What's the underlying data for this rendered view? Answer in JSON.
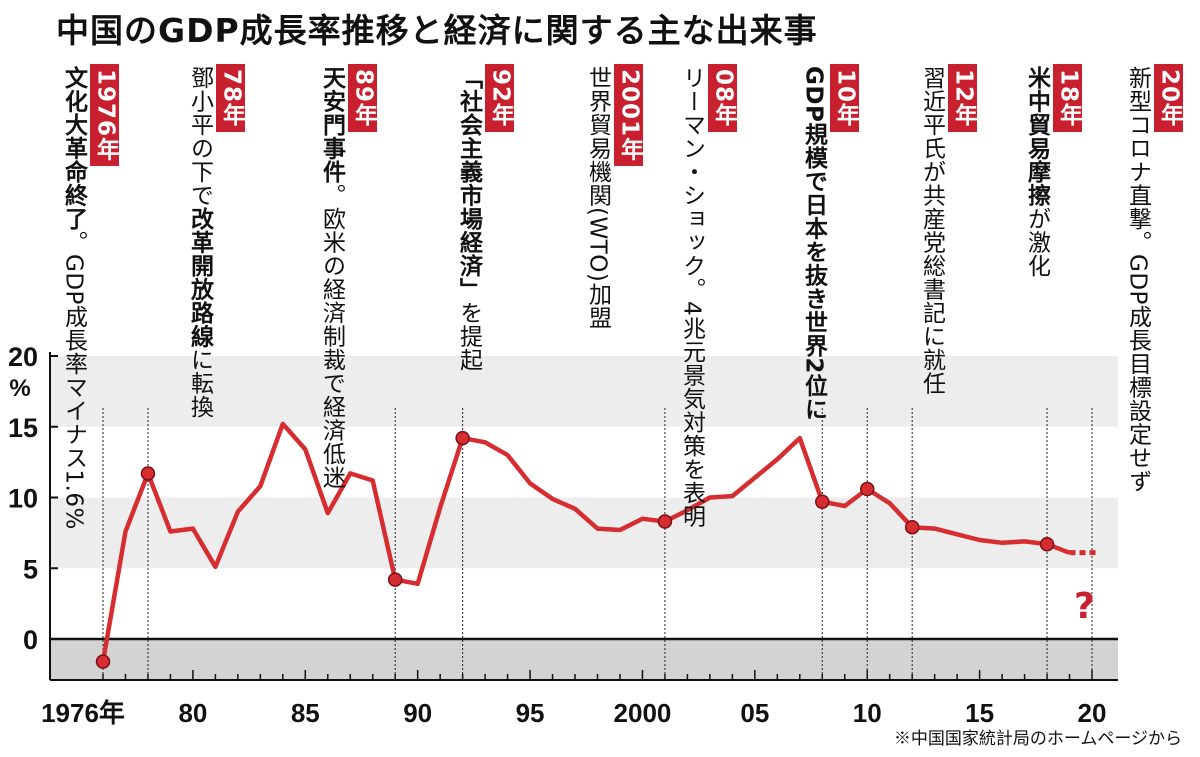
{
  "title": "中国のGDP成長率推移と経済に関する主な出来事",
  "source": "※中国国家統計局のホームページから",
  "question_mark": "?",
  "colors": {
    "accent": "#c8202f",
    "band": "#ededed",
    "negative": "#d3d3d3",
    "line": "#d62d30"
  },
  "events": [
    {
      "tag": "1976年",
      "year": 1976,
      "bold": "文化大革命終了",
      "text": "。GDP成長率マイナス1.6%",
      "text_first": false
    },
    {
      "tag": "78年",
      "year": 1978,
      "bold": "改革開放路線",
      "text": "鄧小平の下で",
      "suffix": "に転換",
      "text_first": true
    },
    {
      "tag": "89年",
      "year": 1989,
      "bold": "天安門事件",
      "text": "。欧米の経済制裁で経済低迷",
      "text_first": false
    },
    {
      "tag": "92年",
      "year": 1992,
      "bold": "「社会主義市場経済」",
      "text": "を提起",
      "text_first": false
    },
    {
      "tag": "2001年",
      "year": 2001,
      "bold": "",
      "text": "世界貿易機関(WTO)加盟",
      "text_first": true
    },
    {
      "tag": "08年",
      "year": 2008,
      "bold": "",
      "text": "リーマン・ショック。4兆元景気対策を表明",
      "text_first": true
    },
    {
      "tag": "10年",
      "year": 2010,
      "bold": "GDP規模で日本を抜き世界2位に",
      "text": "",
      "text_first": false
    },
    {
      "tag": "12年",
      "year": 2012,
      "bold": "",
      "text": "習近平氏が共産党総書記に就任",
      "text_first": true
    },
    {
      "tag": "18年",
      "year": 2018,
      "bold": "米中貿易摩擦",
      "text": "が激化",
      "text_first": false
    },
    {
      "tag": "20年",
      "year": 2020,
      "bold": "",
      "text": "新型コロナ直撃。GDP成長目標設定せず",
      "text_first": true
    }
  ],
  "chart_data": {
    "type": "line",
    "title": "中国のGDP成長率推移と経済に関する主な出来事",
    "xlabel": "",
    "ylabel": "%",
    "xlim": [
      1976,
      2020
    ],
    "ylim": [
      -3,
      20
    ],
    "yticks": [
      0,
      5,
      10,
      15,
      20
    ],
    "xtick_labels": [
      {
        "x": 1976,
        "label": "1976年"
      },
      {
        "x": 1980,
        "label": "80"
      },
      {
        "x": 1985,
        "label": "85"
      },
      {
        "x": 1990,
        "label": "90"
      },
      {
        "x": 1995,
        "label": "95"
      },
      {
        "x": 2000,
        "label": "2000"
      },
      {
        "x": 2005,
        "label": "05"
      },
      {
        "x": 2010,
        "label": "10"
      },
      {
        "x": 2015,
        "label": "15"
      },
      {
        "x": 2020,
        "label": "20"
      }
    ],
    "grid": false,
    "bands": [
      [
        5,
        10
      ],
      [
        15,
        20
      ]
    ],
    "series": [
      {
        "x": [
          1976,
          1977,
          1978,
          1979,
          1980,
          1981,
          1982,
          1983,
          1984,
          1985,
          1986,
          1987,
          1988,
          1989,
          1990,
          1991,
          1992,
          1993,
          1994,
          1995,
          1996,
          1997,
          1998,
          1999,
          2000,
          2001,
          2002,
          2003,
          2004,
          2005,
          2006,
          2007,
          2008,
          2009,
          2010,
          2011,
          2012,
          2013,
          2014,
          2015,
          2016,
          2017,
          2018,
          2019
        ],
        "values": [
          -1.6,
          7.6,
          11.7,
          7.6,
          7.8,
          5.1,
          9.0,
          10.8,
          15.2,
          13.4,
          8.9,
          11.7,
          11.2,
          4.2,
          3.9,
          9.3,
          14.2,
          13.9,
          13.0,
          11.0,
          9.9,
          9.2,
          7.8,
          7.7,
          8.5,
          8.3,
          9.1,
          10.0,
          10.1,
          11.4,
          12.7,
          14.2,
          9.7,
          9.4,
          10.6,
          9.6,
          7.9,
          7.8,
          7.4,
          7.0,
          6.8,
          6.9,
          6.7,
          6.1
        ],
        "markers_at": [
          1976,
          1978,
          1989,
          1992,
          2001,
          2008,
          2010,
          2012,
          2018
        ]
      }
    ]
  }
}
